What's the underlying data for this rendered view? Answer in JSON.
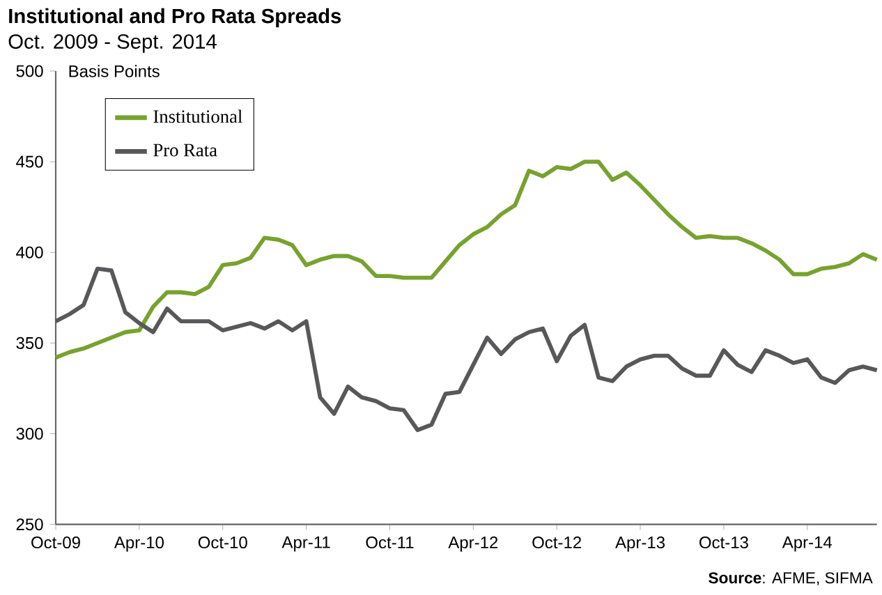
{
  "chart_data": {
    "type": "line",
    "title": "Institutional and Pro Rata Spreads",
    "subtitle": "Oct. 2009 - Sept. 2014",
    "ylabel": "Basis Points",
    "annotations": [
      "**Source**: AFME,  SIFMA"
    ],
    "x": [
      "2009-10",
      "2009-11",
      "2009-12",
      "2010-01",
      "2010-02",
      "2010-03",
      "2010-04",
      "2010-05",
      "2010-06",
      "2010-07",
      "2010-08",
      "2010-09",
      "2010-10",
      "2010-11",
      "2010-12",
      "2011-01",
      "2011-02",
      "2011-03",
      "2011-04",
      "2011-05",
      "2011-06",
      "2011-07",
      "2011-08",
      "2011-09",
      "2011-10",
      "2011-11",
      "2011-12",
      "2012-01",
      "2012-02",
      "2012-03",
      "2012-04",
      "2012-05",
      "2012-06",
      "2012-07",
      "2012-08",
      "2012-09",
      "2012-10",
      "2012-11",
      "2012-12",
      "2013-01",
      "2013-02",
      "2013-03",
      "2013-04",
      "2013-05",
      "2013-06",
      "2013-07",
      "2013-08",
      "2013-09",
      "2013-10",
      "2013-11",
      "2013-12",
      "2014-01",
      "2014-02",
      "2014-03",
      "2014-04",
      "2014-05",
      "2014-06",
      "2014-07",
      "2014-08",
      "2014-09"
    ],
    "series": [
      {
        "name": "Institutional",
        "color": "#77a22f",
        "values": [
          342,
          345,
          347,
          350,
          353,
          356,
          357,
          370,
          378,
          378,
          377,
          381,
          393,
          394,
          397,
          408,
          407,
          404,
          393,
          396,
          398,
          398,
          395,
          387,
          387,
          386,
          386,
          386,
          395,
          404,
          410,
          414,
          421,
          426,
          445,
          442,
          447,
          446,
          450,
          450,
          440,
          444,
          437,
          429,
          421,
          414,
          408,
          409,
          408,
          408,
          405,
          401,
          396,
          388,
          388,
          391,
          392,
          394,
          399,
          396
        ]
      },
      {
        "name": "Pro Rata",
        "color": "#58585a",
        "values": [
          362,
          366,
          371,
          391,
          390,
          367,
          361,
          356,
          369,
          362,
          362,
          362,
          357,
          359,
          361,
          358,
          362,
          357,
          362,
          320,
          311,
          326,
          320,
          318,
          314,
          313,
          302,
          305,
          322,
          323,
          338,
          353,
          344,
          352,
          356,
          358,
          340,
          354,
          360,
          331,
          329,
          337,
          341,
          343,
          343,
          336,
          332,
          332,
          346,
          338,
          334,
          346,
          343,
          339,
          341,
          331,
          328,
          335,
          337,
          335
        ]
      }
    ],
    "xlim": [
      "2009-10",
      "2014-09"
    ],
    "xticks": [
      {
        "value": "2009-10",
        "label": "Oct-09"
      },
      {
        "value": "2010-04",
        "label": "Apr-10"
      },
      {
        "value": "2010-10",
        "label": "Oct-10"
      },
      {
        "value": "2011-04",
        "label": "Apr-11"
      },
      {
        "value": "2011-10",
        "label": "Oct-11"
      },
      {
        "value": "2012-04",
        "label": "Apr-12"
      },
      {
        "value": "2012-10",
        "label": "Oct-12"
      },
      {
        "value": "2013-04",
        "label": "Apr-13"
      },
      {
        "value": "2013-10",
        "label": "Oct-13"
      },
      {
        "value": "2014-04",
        "label": "Apr-14"
      }
    ],
    "ylim": [
      250,
      500
    ],
    "yticks": [
      250,
      300,
      350,
      400,
      450,
      500
    ],
    "legend": "top left",
    "marker": "none",
    "line_style": "solid"
  }
}
